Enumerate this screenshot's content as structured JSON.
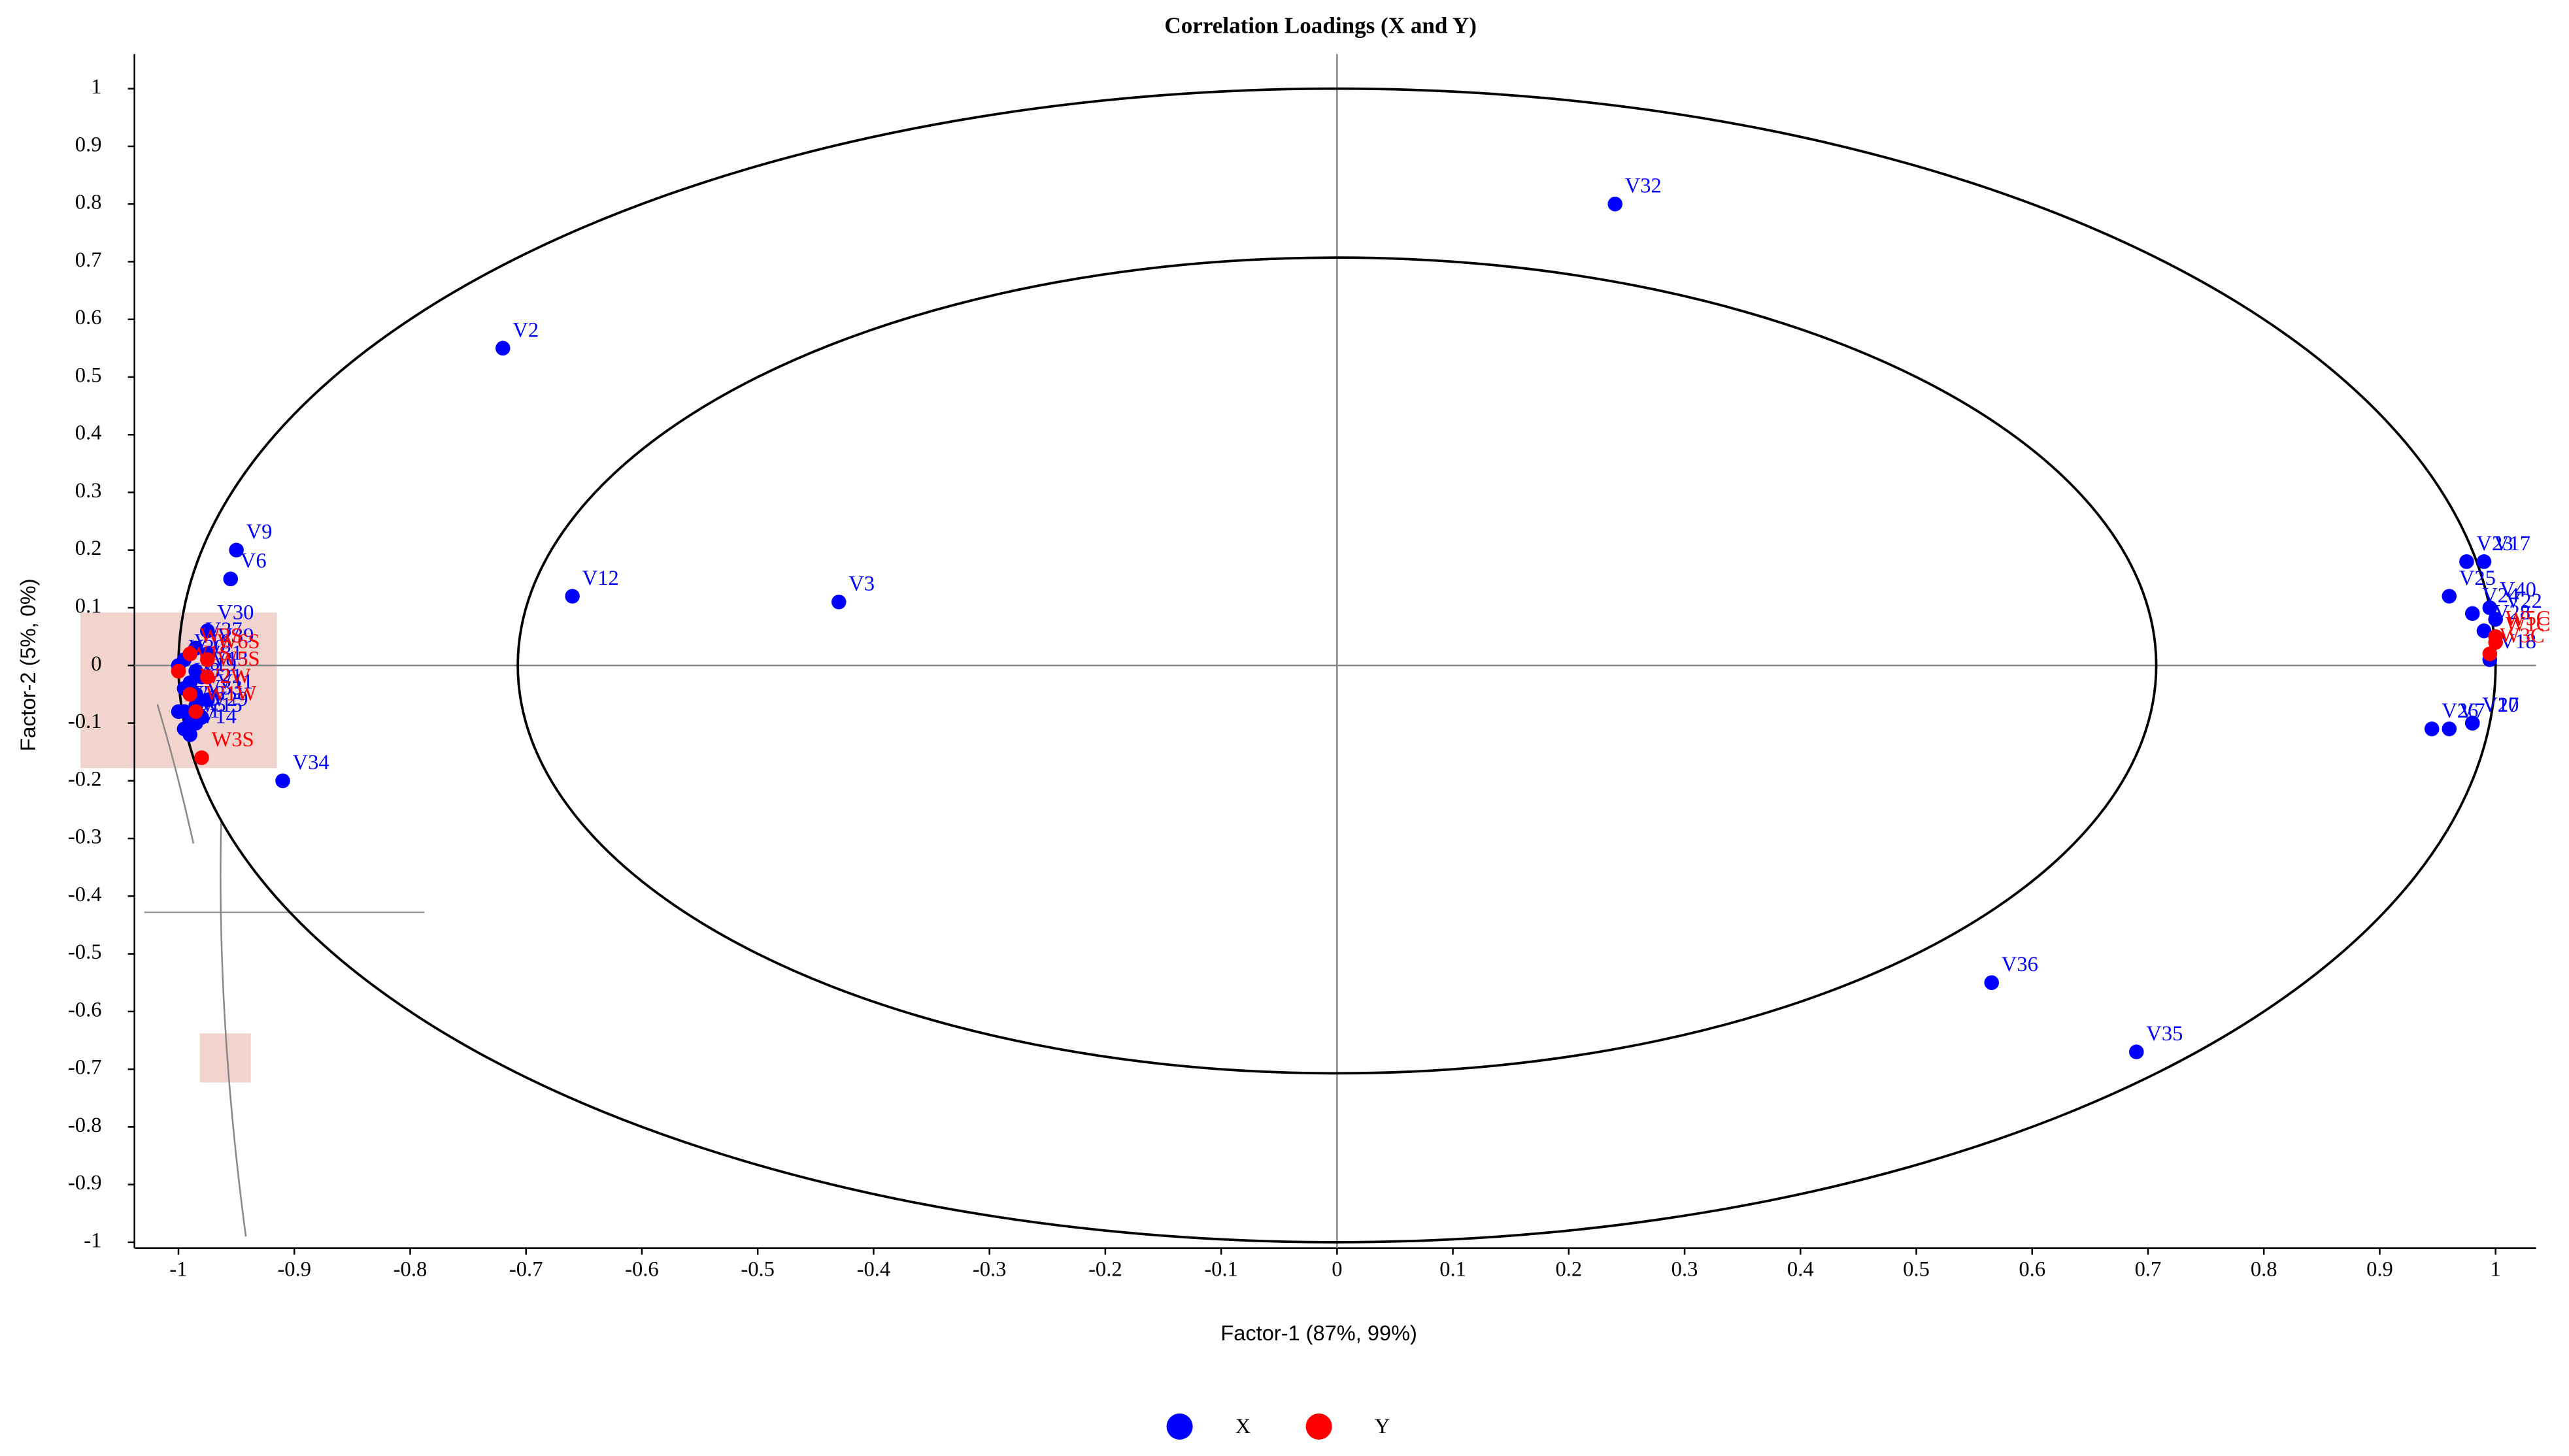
{
  "chart_data": {
    "type": "scatter",
    "title": "Correlation Loadings (X and Y)",
    "x_label": "Factor-1 (87%, 99%)",
    "y_label": "Factor-2 (5%, 0%)",
    "xlim": [
      -1.038,
      1.035
    ],
    "ylim": [
      -1.01,
      1.06
    ],
    "xticks": [
      -1,
      -0.9,
      -0.8,
      -0.7,
      -0.6,
      -0.5,
      -0.4,
      -0.3,
      -0.2,
      -0.1,
      0,
      0.1,
      0.2,
      0.3,
      0.4,
      0.5,
      0.6,
      0.7,
      0.8,
      0.9,
      1
    ],
    "yticks": [
      -1,
      -0.9,
      -0.8,
      -0.7,
      -0.6,
      -0.5,
      -0.4,
      -0.3,
      -0.2,
      -0.1,
      0,
      0.1,
      0.2,
      0.3,
      0.4,
      0.5,
      0.6,
      0.7,
      0.8,
      0.9,
      1
    ],
    "correlation_circles": [
      1,
      0.7071
    ],
    "series": [
      {
        "name": "X",
        "color": "#0000ff",
        "labels": [
          "V32",
          "V2",
          "V12",
          "V3",
          "V9",
          "V6",
          "V30",
          "V34",
          "V36",
          "V35",
          "V23",
          "V17",
          "V25",
          "V40",
          "V24",
          "V22",
          "V28",
          "V18",
          "V27",
          "V26",
          "V7",
          "V10",
          "V37",
          "V39",
          "V16",
          "V20",
          "V31",
          "V13",
          "V19",
          "V21",
          "V11",
          "V33",
          "V4",
          "V29",
          "V38",
          "V5",
          "V15",
          "V1",
          "V14",
          "V8"
        ],
        "x": [
          0.24,
          -0.72,
          -0.66,
          -0.43,
          -0.95,
          -0.955,
          -0.975,
          -0.91,
          0.565,
          0.69,
          0.975,
          0.99,
          0.96,
          0.995,
          0.98,
          1.0,
          0.99,
          0.995,
          0.98,
          0.945,
          0.96,
          0.98,
          -0.985,
          -0.975,
          -0.995,
          -1.0,
          -0.985,
          -0.98,
          -0.99,
          -0.985,
          -0.975,
          -0.985,
          -0.995,
          -0.98,
          -1.0,
          -0.99,
          -0.985,
          -0.995,
          -0.99,
          -0.995
        ],
        "values": [
          0.8,
          0.55,
          0.12,
          0.11,
          0.2,
          0.15,
          0.06,
          -0.2,
          -0.55,
          -0.67,
          0.18,
          0.18,
          0.12,
          0.1,
          0.09,
          0.08,
          0.06,
          0.01,
          -0.1,
          -0.11,
          -0.11,
          -0.1,
          0.03,
          0.02,
          0.01,
          0.0,
          -0.01,
          -0.02,
          -0.03,
          -0.05,
          -0.06,
          -0.07,
          -0.08,
          -0.09,
          -0.08,
          -0.1,
          -0.1,
          -0.11,
          -0.12,
          -0.04
        ]
      },
      {
        "name": "Y",
        "color": "#ff0000",
        "labels": [
          "W2S",
          "W6S",
          "W1S",
          "W5S",
          "W2W",
          "W1W",
          "W3S",
          "W5C",
          "W1C",
          "W3C"
        ],
        "x": [
          -0.99,
          -0.975,
          -1.0,
          -0.975,
          -0.99,
          -0.985,
          -0.98,
          1.0,
          1.0,
          0.995
        ],
        "values": [
          0.02,
          0.01,
          -0.01,
          -0.02,
          -0.05,
          -0.08,
          -0.16,
          0.05,
          0.04,
          0.02
        ]
      }
    ]
  }
}
